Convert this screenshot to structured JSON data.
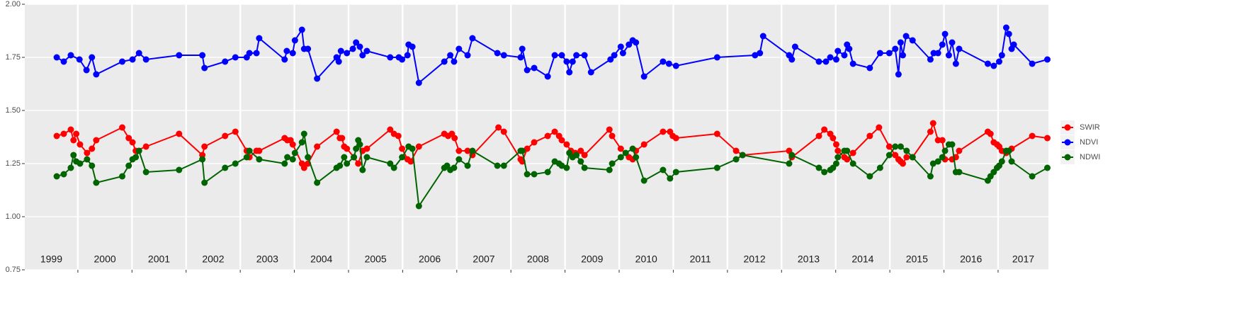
{
  "chart_data": {
    "type": "line",
    "xlim": [
      1999.02,
      2017.93
    ],
    "xticks": [
      2000,
      2001,
      2002,
      2003,
      2004,
      2005,
      2006,
      2007,
      2008,
      2009,
      2010,
      2011,
      2012,
      2013,
      2014,
      2015,
      2016,
      2017
    ],
    "year_labels": [
      {
        "value": 1999,
        "label": "1999"
      },
      {
        "value": 2000,
        "label": "2000"
      },
      {
        "value": 2001,
        "label": "2001"
      },
      {
        "value": 2002,
        "label": "2002"
      },
      {
        "value": 2003,
        "label": "2003"
      },
      {
        "value": 2004,
        "label": "2004"
      },
      {
        "value": 2005,
        "label": "2005"
      },
      {
        "value": 2006,
        "label": "2006"
      },
      {
        "value": 2007,
        "label": "2007"
      },
      {
        "value": 2008,
        "label": "2008"
      },
      {
        "value": 2009,
        "label": "2009"
      },
      {
        "value": 2010,
        "label": "2010"
      },
      {
        "value": 2011,
        "label": "2011"
      },
      {
        "value": 2012,
        "label": "2012"
      },
      {
        "value": 2013,
        "label": "2013"
      },
      {
        "value": 2014,
        "label": "2014"
      },
      {
        "value": 2015,
        "label": "2015"
      },
      {
        "value": 2016,
        "label": "2016"
      },
      {
        "value": 2017,
        "label": "2017"
      }
    ],
    "ylim": [
      0.75,
      2.0
    ],
    "yticks": [
      {
        "value": 0.75,
        "label": "0.75"
      },
      {
        "value": 1.0,
        "label": "1.00"
      },
      {
        "value": 1.25,
        "label": "1.25"
      },
      {
        "value": 1.5,
        "label": "1.50"
      },
      {
        "value": 1.75,
        "label": "1.75"
      },
      {
        "value": 2.0,
        "label": "2.00"
      }
    ],
    "grid": true,
    "legend": "right",
    "series": [
      {
        "name": "SWIR",
        "color": "#ff0000",
        "x": [
          1999.61,
          1999.74,
          1999.87,
          1999.92,
          1999.97,
          2000.04,
          2000.17,
          2000.26,
          2000.34,
          2000.82,
          2000.94,
          2001.01,
          2001.07,
          2001.26,
          2001.87,
          2002.3,
          2002.34,
          2002.72,
          2002.91,
          2003.12,
          2003.17,
          2003.3,
          2003.35,
          2003.82,
          2003.87,
          2003.93,
          2003.97,
          2004.14,
          2004.18,
          2004.25,
          2004.42,
          2004.78,
          2004.84,
          2004.88,
          2004.92,
          2004.97,
          2005.1,
          2005.18,
          2005.26,
          2005.34,
          2005.77,
          2005.84,
          2005.92,
          2005.99,
          2006.09,
          2006.15,
          2006.3,
          2006.77,
          2006.84,
          2006.91,
          2006.96,
          2007.04,
          2007.2,
          2007.29,
          2007.77,
          2007.87,
          2008.18,
          2008.21,
          2008.3,
          2008.43,
          2008.68,
          2008.81,
          2008.89,
          2008.94,
          2009.03,
          2009.11,
          2009.19,
          2009.29,
          2009.36,
          2009.82,
          2009.87,
          2010.03,
          2010.18,
          2010.25,
          2010.31,
          2010.46,
          2010.81,
          2010.94,
          2010.99,
          2011.05,
          2011.81,
          2012.16,
          2012.28,
          2013.14,
          2013.19,
          2013.69,
          2013.79,
          2013.9,
          2013.95,
          2014.01,
          2014.04,
          2014.16,
          2014.21,
          2014.32,
          2014.63,
          2014.8,
          2014.99,
          2015.1,
          2015.16,
          2015.2,
          2015.24,
          2015.31,
          2015.42,
          2015.75,
          2015.8,
          2015.89,
          2015.97,
          2016.02,
          2016.15,
          2016.22,
          2016.28,
          2016.81,
          2016.86,
          2016.92,
          2016.98,
          2017.02,
          2017.07,
          2017.15,
          2017.25,
          2017.63,
          2017.91
        ],
        "values": [
          1.38,
          1.39,
          1.41,
          1.36,
          1.39,
          1.34,
          1.3,
          1.32,
          1.36,
          1.42,
          1.37,
          1.35,
          1.31,
          1.33,
          1.39,
          1.29,
          1.33,
          1.38,
          1.4,
          1.31,
          1.28,
          1.31,
          1.31,
          1.37,
          1.36,
          1.36,
          1.34,
          1.25,
          1.23,
          1.25,
          1.33,
          1.4,
          1.37,
          1.37,
          1.33,
          1.32,
          1.28,
          1.25,
          1.31,
          1.32,
          1.41,
          1.39,
          1.38,
          1.32,
          1.27,
          1.26,
          1.33,
          1.39,
          1.38,
          1.39,
          1.37,
          1.31,
          1.31,
          1.29,
          1.42,
          1.4,
          1.27,
          1.26,
          1.32,
          1.35,
          1.38,
          1.4,
          1.38,
          1.36,
          1.34,
          1.31,
          1.3,
          1.31,
          1.29,
          1.41,
          1.38,
          1.32,
          1.28,
          1.27,
          1.31,
          1.34,
          1.4,
          1.4,
          1.38,
          1.37,
          1.39,
          1.31,
          1.29,
          1.31,
          1.28,
          1.38,
          1.41,
          1.39,
          1.37,
          1.34,
          1.31,
          1.28,
          1.27,
          1.3,
          1.38,
          1.42,
          1.33,
          1.29,
          1.27,
          1.26,
          1.25,
          1.28,
          1.28,
          1.4,
          1.44,
          1.36,
          1.36,
          1.27,
          1.27,
          1.28,
          1.31,
          1.4,
          1.39,
          1.35,
          1.34,
          1.33,
          1.31,
          1.3,
          1.32,
          1.38,
          1.37
        ]
      },
      {
        "name": "NDVI",
        "color": "#0000ff",
        "x": [
          1999.61,
          1999.74,
          1999.87,
          2000.03,
          2000.16,
          2000.26,
          2000.34,
          2000.82,
          2001.01,
          2001.13,
          2001.26,
          2001.87,
          2002.3,
          2002.34,
          2002.72,
          2002.91,
          2003.12,
          2003.17,
          2003.3,
          2003.35,
          2003.82,
          2003.86,
          2003.97,
          2004.01,
          2004.14,
          2004.18,
          2004.25,
          2004.42,
          2004.78,
          2004.82,
          2004.86,
          2004.97,
          2005.08,
          2005.14,
          2005.21,
          2005.26,
          2005.34,
          2005.77,
          2005.93,
          2005.99,
          2006.09,
          2006.11,
          2006.18,
          2006.3,
          2006.77,
          2006.88,
          2006.95,
          2007.04,
          2007.2,
          2007.29,
          2007.75,
          2007.87,
          2008.18,
          2008.21,
          2008.3,
          2008.43,
          2008.68,
          2008.81,
          2008.94,
          2009.03,
          2009.08,
          2009.14,
          2009.21,
          2009.36,
          2009.48,
          2009.84,
          2009.91,
          2010.03,
          2010.07,
          2010.18,
          2010.25,
          2010.31,
          2010.46,
          2010.81,
          2010.92,
          2011.05,
          2011.81,
          2012.51,
          2012.6,
          2012.66,
          2013.14,
          2013.19,
          2013.25,
          2013.69,
          2013.82,
          2013.9,
          2014.01,
          2014.04,
          2014.16,
          2014.21,
          2014.25,
          2014.32,
          2014.63,
          2014.82,
          2014.99,
          2015.1,
          2015.16,
          2015.2,
          2015.24,
          2015.3,
          2015.42,
          2015.75,
          2015.81,
          2015.89,
          2015.97,
          2016.02,
          2016.09,
          2016.15,
          2016.22,
          2016.28,
          2016.81,
          2016.92,
          2017.02,
          2017.07,
          2017.15,
          2017.2,
          2017.25,
          2017.29,
          2017.63,
          2017.91
        ],
        "values": [
          1.75,
          1.73,
          1.76,
          1.74,
          1.69,
          1.75,
          1.67,
          1.73,
          1.74,
          1.77,
          1.74,
          1.76,
          1.76,
          1.7,
          1.73,
          1.75,
          1.75,
          1.77,
          1.77,
          1.84,
          1.74,
          1.78,
          1.77,
          1.83,
          1.88,
          1.79,
          1.79,
          1.65,
          1.75,
          1.73,
          1.78,
          1.77,
          1.79,
          1.82,
          1.8,
          1.76,
          1.78,
          1.75,
          1.75,
          1.74,
          1.76,
          1.81,
          1.8,
          1.63,
          1.73,
          1.76,
          1.73,
          1.79,
          1.76,
          1.84,
          1.77,
          1.76,
          1.75,
          1.79,
          1.69,
          1.7,
          1.66,
          1.76,
          1.76,
          1.73,
          1.68,
          1.73,
          1.76,
          1.76,
          1.68,
          1.74,
          1.76,
          1.8,
          1.77,
          1.81,
          1.83,
          1.82,
          1.66,
          1.73,
          1.72,
          1.71,
          1.75,
          1.76,
          1.77,
          1.85,
          1.76,
          1.74,
          1.8,
          1.73,
          1.73,
          1.75,
          1.74,
          1.78,
          1.76,
          1.81,
          1.79,
          1.72,
          1.7,
          1.77,
          1.77,
          1.79,
          1.67,
          1.82,
          1.76,
          1.85,
          1.83,
          1.74,
          1.77,
          1.77,
          1.81,
          1.86,
          1.76,
          1.82,
          1.72,
          1.79,
          1.72,
          1.71,
          1.73,
          1.76,
          1.89,
          1.86,
          1.79,
          1.81,
          1.72,
          1.74
        ]
      },
      {
        "name": "NDWI",
        "color": "#006400",
        "x": [
          1999.61,
          1999.74,
          1999.87,
          1999.92,
          1999.97,
          2000.04,
          2000.17,
          2000.26,
          2000.34,
          2000.82,
          2000.94,
          2001.01,
          2001.07,
          2001.13,
          2001.26,
          2001.87,
          2002.3,
          2002.34,
          2002.72,
          2002.91,
          2003.12,
          2003.17,
          2003.35,
          2003.82,
          2003.87,
          2003.97,
          2004.01,
          2004.14,
          2004.18,
          2004.25,
          2004.42,
          2004.78,
          2004.84,
          2004.92,
          2004.97,
          2005.1,
          2005.14,
          2005.18,
          2005.21,
          2005.26,
          2005.34,
          2005.77,
          2005.84,
          2005.99,
          2006.11,
          2006.18,
          2006.3,
          2006.77,
          2006.82,
          2006.88,
          2006.95,
          2007.04,
          2007.2,
          2007.29,
          2007.75,
          2007.87,
          2008.18,
          2008.21,
          2008.3,
          2008.43,
          2008.68,
          2008.81,
          2008.89,
          2008.94,
          2009.03,
          2009.08,
          2009.14,
          2009.21,
          2009.29,
          2009.36,
          2009.82,
          2009.87,
          2010.03,
          2010.12,
          2010.25,
          2010.31,
          2010.46,
          2010.81,
          2010.94,
          2011.05,
          2011.81,
          2012.16,
          2012.28,
          2013.14,
          2013.19,
          2013.69,
          2013.79,
          2013.9,
          2013.95,
          2014.01,
          2014.04,
          2014.16,
          2014.21,
          2014.32,
          2014.63,
          2014.82,
          2014.99,
          2015.1,
          2015.2,
          2015.31,
          2015.42,
          2015.75,
          2015.8,
          2015.89,
          2015.97,
          2016.02,
          2016.09,
          2016.15,
          2016.22,
          2016.28,
          2016.81,
          2016.86,
          2016.92,
          2016.98,
          2017.02,
          2017.07,
          2017.15,
          2017.2,
          2017.25,
          2017.63,
          2017.91
        ],
        "values": [
          1.19,
          1.2,
          1.23,
          1.29,
          1.26,
          1.25,
          1.27,
          1.24,
          1.16,
          1.19,
          1.24,
          1.27,
          1.28,
          1.31,
          1.21,
          1.22,
          1.27,
          1.16,
          1.23,
          1.25,
          1.28,
          1.31,
          1.27,
          1.25,
          1.28,
          1.27,
          1.3,
          1.35,
          1.39,
          1.28,
          1.16,
          1.23,
          1.24,
          1.28,
          1.25,
          1.28,
          1.32,
          1.36,
          1.34,
          1.22,
          1.28,
          1.25,
          1.23,
          1.28,
          1.33,
          1.32,
          1.05,
          1.23,
          1.24,
          1.22,
          1.23,
          1.27,
          1.24,
          1.31,
          1.24,
          1.24,
          1.31,
          1.31,
          1.2,
          1.2,
          1.21,
          1.26,
          1.25,
          1.24,
          1.23,
          1.3,
          1.28,
          1.29,
          1.26,
          1.23,
          1.22,
          1.25,
          1.28,
          1.3,
          1.32,
          1.28,
          1.17,
          1.22,
          1.18,
          1.21,
          1.23,
          1.27,
          1.29,
          1.25,
          1.29,
          1.23,
          1.21,
          1.22,
          1.23,
          1.25,
          1.28,
          1.31,
          1.31,
          1.25,
          1.19,
          1.23,
          1.29,
          1.33,
          1.33,
          1.31,
          1.28,
          1.19,
          1.25,
          1.26,
          1.28,
          1.31,
          1.34,
          1.34,
          1.21,
          1.21,
          1.17,
          1.19,
          1.21,
          1.23,
          1.24,
          1.26,
          1.31,
          1.31,
          1.26,
          1.19,
          1.23
        ]
      }
    ]
  }
}
